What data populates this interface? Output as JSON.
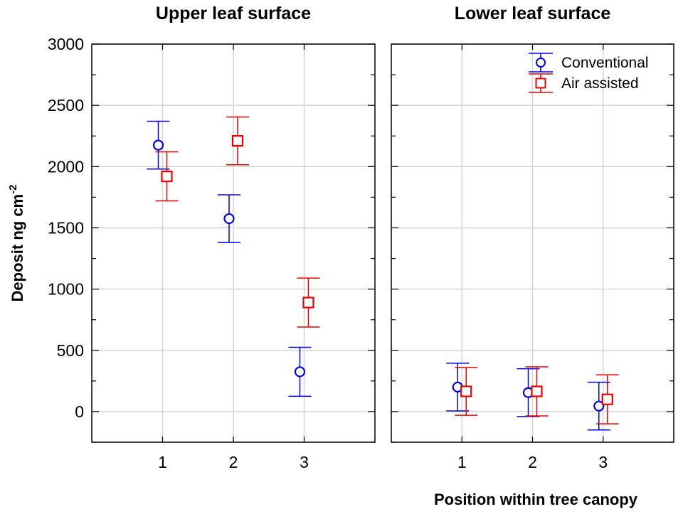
{
  "chart_data": {
    "type": "scatter",
    "ylabel": "Deposit ng cm",
    "ylabel_superscript": "-2",
    "xlabel": "Position within tree canopy",
    "ylim": [
      -250,
      3000
    ],
    "yticks": [
      0,
      500,
      1000,
      1500,
      2000,
      2500,
      3000
    ],
    "xlim": [
      0,
      4
    ],
    "xticks": [
      1,
      2,
      3
    ],
    "grid": true,
    "legend": {
      "position": "top-right",
      "entries": [
        {
          "name": "Conventional",
          "marker": "circle",
          "color": "#0000ee"
        },
        {
          "name": "Air assisted",
          "marker": "square",
          "color": "#ee0000"
        }
      ]
    },
    "panels": [
      {
        "title": "Upper leaf surface",
        "series": [
          {
            "name": "Conventional",
            "x": [
              1,
              2,
              3
            ],
            "y": [
              2175,
              1575,
              325
            ],
            "err": [
              195,
              195,
              200
            ]
          },
          {
            "name": "Air assisted",
            "x": [
              1,
              2,
              3
            ],
            "y": [
              1920,
              2210,
              890
            ],
            "err": [
              200,
              195,
              200
            ]
          }
        ]
      },
      {
        "title": "Lower leaf surface",
        "series": [
          {
            "name": "Conventional",
            "x": [
              1,
              2,
              3
            ],
            "y": [
              200,
              155,
              45
            ],
            "err": [
              195,
              195,
              195
            ]
          },
          {
            "name": "Air assisted",
            "x": [
              1,
              2,
              3
            ],
            "y": [
              165,
              165,
              100
            ],
            "err": [
              195,
              200,
              200
            ]
          }
        ]
      }
    ]
  }
}
